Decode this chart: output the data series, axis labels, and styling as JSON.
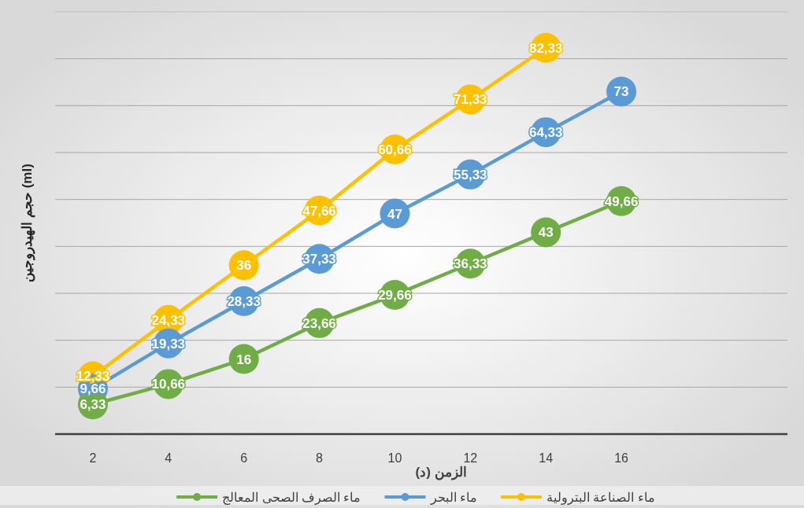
{
  "chart_data": {
    "type": "line",
    "xlabel": "الزمن (د)",
    "ylabel": "حجم الهيدروجين (ml)",
    "xlim": [
      1,
      20.4
    ],
    "xticks": [
      2,
      4,
      6,
      8,
      10,
      12,
      14,
      16
    ],
    "ylim": [
      0,
      90
    ],
    "yticks": [
      {
        "value": 10,
        "label": null
      },
      {
        "value": 20,
        "label": null
      },
      {
        "value": 30,
        "label": null
      },
      {
        "value": 40,
        "label": null
      },
      {
        "value": 50,
        "label": null
      },
      {
        "value": 60,
        "label": null
      },
      {
        "value": 70,
        "label": null
      },
      {
        "value": 80,
        "label": null
      }
    ],
    "tick_labels": "x",
    "grid": "y",
    "legend": "bottom",
    "marker": "circle",
    "line_style": "solid",
    "series": [
      {
        "name": "ماء الصناعة البترولية",
        "color": "#ffc000",
        "x": [
          2,
          4,
          6,
          8,
          10,
          12,
          14
        ],
        "values": [
          12.33,
          24.33,
          36,
          47.66,
          60.66,
          71.33,
          82.33
        ],
        "value_labels": [
          "12,33",
          "24,33",
          "36",
          "47,66",
          "60,66",
          "71,33",
          "82,33"
        ]
      },
      {
        "name": "ماء البحر",
        "color": "#5b9bd5",
        "x": [
          2,
          4,
          6,
          8,
          10,
          12,
          14,
          16
        ],
        "values": [
          9.66,
          19.33,
          28.33,
          37.33,
          47,
          55.33,
          64.33,
          73
        ],
        "value_labels": [
          "9,66",
          "19,33",
          "28,33",
          "37,33",
          "47",
          "55,33",
          "64,33",
          "73"
        ]
      },
      {
        "name": "ماء الصرف الصحى المعالج",
        "color": "#70ad47",
        "x": [
          2,
          4,
          6,
          8,
          10,
          12,
          14,
          16
        ],
        "values": [
          6.33,
          10.66,
          16,
          23.66,
          29.66,
          36.33,
          43,
          49.66
        ],
        "value_labels": [
          "6,33",
          "10,66",
          "16",
          "23,66",
          "29,66",
          "36,33",
          "43",
          "49,66"
        ]
      }
    ]
  }
}
